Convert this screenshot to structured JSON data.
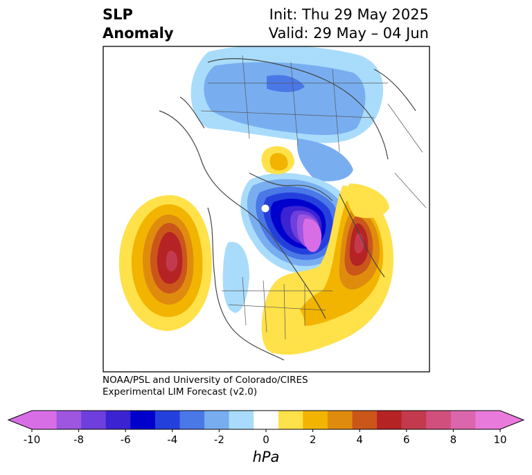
{
  "title": {
    "left_line1": "SLP",
    "left_line2": "Anomaly",
    "init": "Init: Thu 29 May 2025",
    "valid": "Valid: 29 May – 04 Jun"
  },
  "credit": {
    "line1": "NOAA/PSL and University of Colorado/CIRES",
    "line2": "Experimental LIM Forecast (v2.0)"
  },
  "colorbar": {
    "unit": "hPa",
    "tick_labels": [
      "-10",
      "-8",
      "-6",
      "-4",
      "-2",
      "0",
      "2",
      "4",
      "6",
      "8",
      "10"
    ],
    "colors": [
      "#d86ee6",
      "#9e55df",
      "#6e3fdc",
      "#3b23d2",
      "#0000cd",
      "#2440dc",
      "#4a78e6",
      "#78aef0",
      "#a9dcfb",
      "#ffffff",
      "#ffe14a",
      "#f2b400",
      "#df8c0e",
      "#cb561a",
      "#b52325",
      "#c33a4e",
      "#d14f7c",
      "#db66ae",
      "#e77ada"
    ],
    "range": [
      -10,
      10
    ],
    "extend": "both"
  },
  "map": {
    "projection": "polar stereographic, North Hemisphere",
    "features": [
      {
        "name": "central-canada-low",
        "anomaly_hpa": -10
      },
      {
        "name": "north-pacific-high",
        "anomaly_hpa": 6
      },
      {
        "name": "greenland-atlantic-high",
        "anomaly_hpa": 6
      },
      {
        "name": "eastern-us-high",
        "anomaly_hpa": 2
      },
      {
        "name": "siberia-low",
        "anomaly_hpa": -3
      }
    ]
  }
}
